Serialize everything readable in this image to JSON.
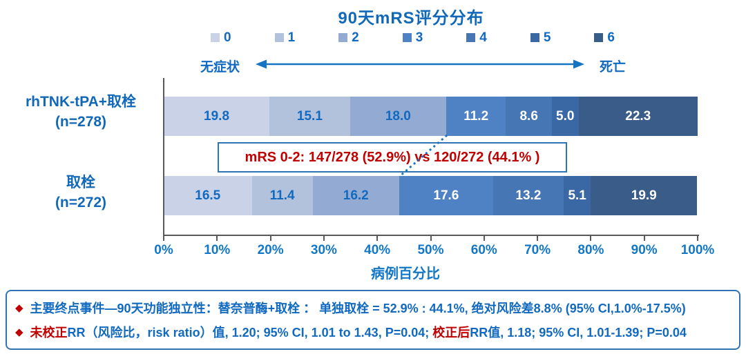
{
  "colors": {
    "text_blue": "#1169c0",
    "title_blue": "#1268b8",
    "tick_blue": "#1377c8",
    "red": "#c00000",
    "box_border": "#2e74b5",
    "axis_gray": "#595959",
    "white": "#ffffff",
    "arrow_blue": "#1673c0"
  },
  "chart_data": {
    "type": "bar",
    "variant": "horizontal-stacked",
    "title": "90天mRS评分分布",
    "xlabel": "病例百分比",
    "xlim": [
      0,
      100
    ],
    "grid": false,
    "legend_position": "top",
    "x_ticks": [
      "0%",
      "10%",
      "20%",
      "30%",
      "40%",
      "50%",
      "60%",
      "70%",
      "80%",
      "90%",
      "100%"
    ],
    "palette": [
      "#c9d2e6",
      "#b2c1dc",
      "#93abd2",
      "#4f82c5",
      "#4677b4",
      "#3a68a4",
      "#3a5c88"
    ],
    "legend": [
      {
        "label": "0",
        "color": "#c9d2e6"
      },
      {
        "label": "1",
        "color": "#b2c1dc"
      },
      {
        "label": "2",
        "color": "#93abd2"
      },
      {
        "label": "3",
        "color": "#4f82c5"
      },
      {
        "label": "4",
        "color": "#4677b4"
      },
      {
        "label": "5",
        "color": "#3a68a4"
      },
      {
        "label": "6",
        "color": "#3a5c88"
      }
    ],
    "scale_left_label": "无症状",
    "scale_right_label": "死亡",
    "series": [
      {
        "name": "rhTNK-tPA+取栓",
        "n_label": "(n=278)",
        "values": [
          19.8,
          15.1,
          18.0,
          11.2,
          8.6,
          5.0,
          22.3
        ],
        "labels": [
          "19.8",
          "15.1",
          "18.0",
          "11.2",
          "8.6",
          "5.0",
          "22.3"
        ]
      },
      {
        "name": "取栓",
        "n_label": "(n=272)",
        "values": [
          16.5,
          11.4,
          16.2,
          17.6,
          13.2,
          5.1,
          19.9
        ],
        "labels": [
          "16.5",
          "11.4",
          "16.2",
          "17.6",
          "13.2",
          "5.1",
          "19.9"
        ]
      }
    ],
    "annotation": "mRS 0-2: 147/278 (52.9%) vs 120/272 (44.1% )"
  },
  "footer": {
    "line1_bullet": "◆",
    "line1_text": "主要终点事件—90天功能独立性：替奈普酶+取栓 ： 单独取栓 = 52.9% : 44.1%, 绝对风险差8.8% (95% CI,1.0%-17.5%)",
    "line2_bullet": "◆",
    "line2_seg1": "未校正",
    "line2_seg2": "RR（风险比，risk ratio）值, 1.20; 95% CI, 1.01 to 1.43, P=0.04; ",
    "line2_seg3": "校正后",
    "line2_seg4": "RR值, 1.18; 95% CI, 1.01-1.39; P=0.04"
  }
}
